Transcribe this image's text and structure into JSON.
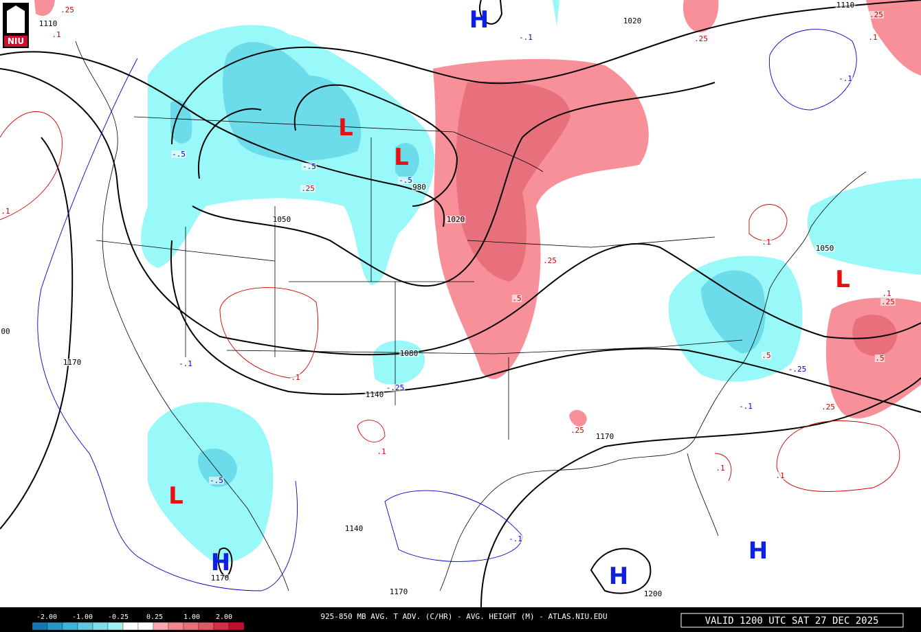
{
  "logo": "NIU",
  "map": {
    "pressure_centers": [
      "H",
      "L",
      "L",
      "L",
      "L",
      "H",
      "H",
      "H"
    ],
    "contour_labels": [
      "1110",
      ".1",
      ".25",
      "1020",
      "-.1",
      ".25",
      "1110",
      ".25",
      ".1",
      "-.1",
      "-.5",
      "-.5",
      ".25",
      "-.5",
      "980",
      "1050",
      "1020",
      ".1",
      "1050",
      ".25",
      ".5",
      ".1",
      ".25",
      "00",
      "1170",
      "-.1",
      "1080",
      ".5",
      "-.25",
      ".1",
      "-.25",
      "1140",
      "-.1",
      ".25",
      ".5",
      ".1",
      ".25",
      "1170",
      ".1",
      ".1",
      "-.5",
      "1140",
      "-.1",
      "1170",
      "1170",
      "1200",
      ".1"
    ]
  },
  "colorbar": {
    "labels": [
      "-2.00",
      "-1.00",
      "-0.25",
      "0.25",
      "1.00",
      "2.00"
    ]
  },
  "footer": {
    "title": "925-850 MB AVG. T ADV. (C/HR) - AVG. HEIGHT (M) - ATLAS.NIU.EDU",
    "valid": "VALID 1200 UTC SAT 27 DEC 2025"
  }
}
